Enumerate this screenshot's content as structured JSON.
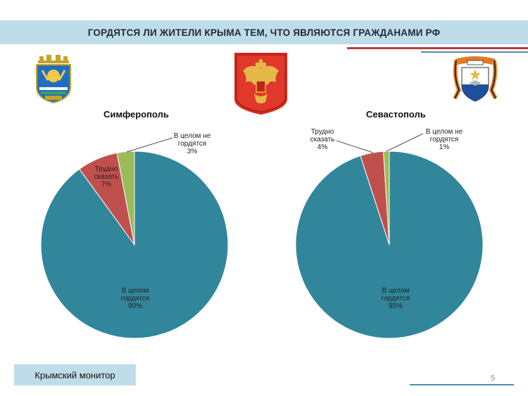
{
  "header": {
    "title": "ГОРДЯТСЯ ЛИ ЖИТЕЛИ КРЫМА ТЕМ, ЧТО ЯВЛЯЮТСЯ ГРАЖДАНАМИ РФ"
  },
  "colors": {
    "accent_bar": "#bfdde8",
    "accent_red": "#b5413e",
    "accent_blue": "#4e8fae"
  },
  "chart_data": [
    {
      "type": "pie",
      "title": "Симферополь",
      "slices": [
        {
          "label_lines": [
            "В целом",
            "гордятся"
          ],
          "value": 90,
          "percent": "90%",
          "color": "#31869b"
        },
        {
          "label_lines": [
            "Трудно",
            "сказать"
          ],
          "value": 7,
          "percent": "7%",
          "color": "#c0504d"
        },
        {
          "label_lines": [
            "В целом не",
            "гордятся"
          ],
          "value": 3,
          "percent": "3%",
          "color": "#9bbb59"
        }
      ]
    },
    {
      "type": "pie",
      "title": "Севастополь",
      "slices": [
        {
          "label_lines": [
            "В целом",
            "гордятся"
          ],
          "value": 95,
          "percent": "95%",
          "color": "#31869b"
        },
        {
          "label_lines": [
            "Трудно",
            "сказать"
          ],
          "value": 4,
          "percent": "4%",
          "color": "#c0504d"
        },
        {
          "label_lines": [
            "В целом не",
            "гордятся"
          ],
          "value": 1,
          "percent": "1%",
          "color": "#9bbb59"
        }
      ]
    }
  ],
  "emblems": {
    "left": "simferopol-coat-of-arms-icon",
    "center": "russia-coat-of-arms-icon",
    "right": "sevastopol-coat-of-arms-icon"
  },
  "footer": {
    "source": "Крымский монитор",
    "page_number": "5"
  }
}
